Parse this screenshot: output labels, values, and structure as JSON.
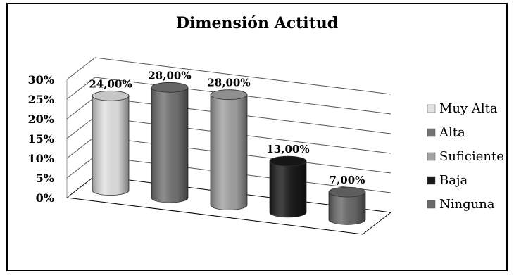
{
  "chart_data": {
    "type": "bar",
    "title": "Dimensión Actitud",
    "categories": [
      "Muy Alta",
      "Alta",
      "Suficiente",
      "Baja",
      "Ninguna"
    ],
    "values": [
      24,
      28,
      28,
      13,
      7
    ],
    "data_labels": [
      "24,00%",
      "28,00%",
      "28,00%",
      "13,00%",
      "7,00%"
    ],
    "ylim": [
      0,
      30
    ],
    "yticks": [
      "0%",
      "5%",
      "10%",
      "15%",
      "20%",
      "25%",
      "30%"
    ],
    "grid": true,
    "legend_position": "right",
    "colors": [
      "#e2e2e2",
      "#737373",
      "#a3a3a3",
      "#1a1a1a",
      "#6a6a6a"
    ]
  }
}
